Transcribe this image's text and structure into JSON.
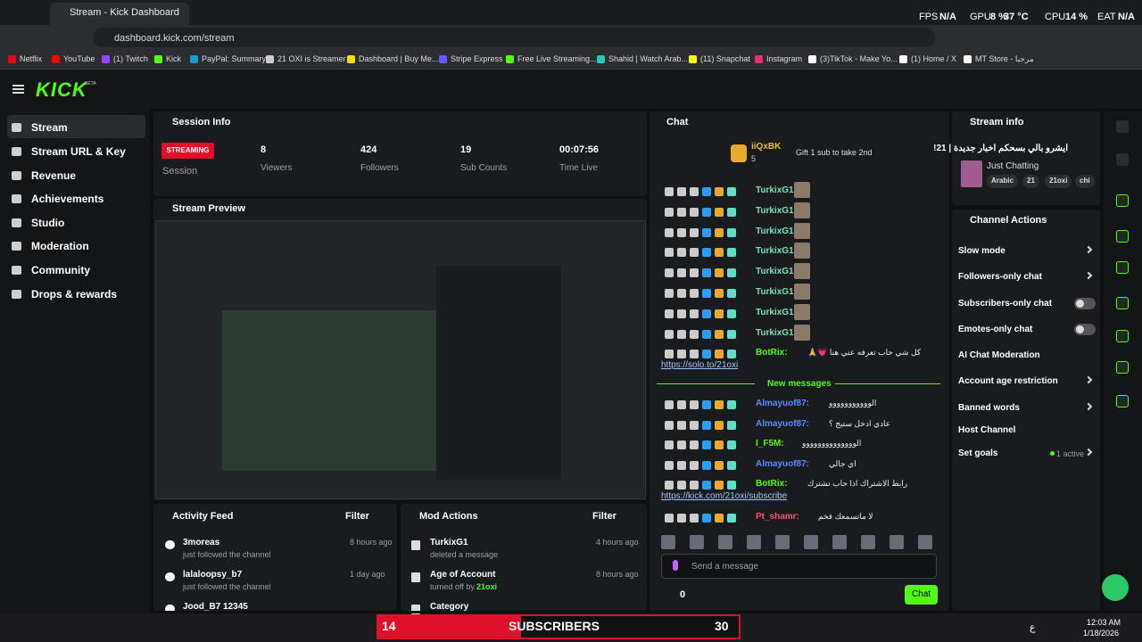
{
  "browser": {
    "tab_title": "Stream - Kick Dashboard",
    "url": "dashboard.kick.com/stream",
    "stats": [
      "FPS",
      "N/A",
      "GPU",
      "8 %",
      "37 °C",
      "CPU",
      "14 %",
      "EAT",
      "N/A"
    ],
    "bookmarks": [
      "Netflix",
      "YouTube",
      "(1) Twitch",
      "Kick",
      "PayPal: Summary",
      "21 OXI is Streamer",
      "Dashboard | Buy Me...",
      "Stripe Express",
      "Free Live Streaming...",
      "Shahid | Watch Arab...",
      "(11) Snapchat",
      "Instagram",
      "(3)TikTok - Make Yo...",
      "(1) Home / X",
      "MT Store - مرحبا"
    ]
  },
  "sidebar": {
    "logo": "KICK",
    "beta": "BETA",
    "items": [
      "Stream",
      "Stream URL & Key",
      "Revenue",
      "Achievements",
      "Studio",
      "Moderation",
      "Community",
      "Drops & rewards"
    ]
  },
  "session": {
    "title": "Session Info",
    "status": "STREAMING",
    "status_label": "Session",
    "stats": [
      {
        "value": 8,
        "label": "Viewers"
      },
      {
        "value": 424,
        "label": "Followers"
      },
      {
        "value": 19,
        "label": "Sub Counts"
      },
      {
        "value": "00:07:56",
        "label": "Time Live"
      }
    ]
  },
  "preview": {
    "title": "Stream Preview"
  },
  "activity": {
    "title": "Activity Feed",
    "filter": "Filter",
    "items": [
      {
        "name": "3moreas",
        "action": "just followed the channel",
        "time": "8 hours ago"
      },
      {
        "name": "lalaloopsy_b7",
        "action": "just followed the channel",
        "time": "1 day ago"
      },
      {
        "name": "Jood_B7 12345",
        "action": "",
        "time": ""
      }
    ]
  },
  "mod_actions": {
    "title": "Mod Actions",
    "filter": "Filter",
    "items": [
      {
        "name": "TurkixG1",
        "action": "deleted a message",
        "by": "",
        "time": "4 hours ago"
      },
      {
        "name": "Age of Account",
        "action": "turned off by",
        "by": "21oxi",
        "time": "8 hours ago"
      },
      {
        "name": "Category",
        "action": "",
        "by": "",
        "time": ""
      }
    ]
  },
  "chat": {
    "title": "Chat",
    "gifter": "iiQxBK",
    "gifter_count": 5,
    "gift_text": "Gift 1 sub to take 2nd",
    "new_messages": "New messages",
    "input": "Send a message",
    "send": "Chat",
    "points": 0,
    "messages": [
      {
        "user": "TurkixG1:",
        "color": "#7ee0b8",
        "text": "",
        "link": ""
      },
      {
        "user": "TurkixG1:",
        "color": "#7ee0b8",
        "text": "",
        "link": ""
      },
      {
        "user": "TurkixG1:",
        "color": "#7ee0b8",
        "text": "",
        "link": ""
      },
      {
        "user": "TurkixG1:",
        "color": "#7ee0b8",
        "text": "",
        "link": ""
      },
      {
        "user": "TurkixG1:",
        "color": "#7ee0b8",
        "text": "",
        "link": ""
      },
      {
        "user": "TurkixG1:",
        "color": "#7ee0b8",
        "text": "",
        "link": ""
      },
      {
        "user": "TurkixG1:",
        "color": "#7ee0b8",
        "text": "",
        "link": ""
      },
      {
        "user": "TurkixG1:",
        "color": "#7ee0b8",
        "text": "",
        "link": ""
      },
      {
        "user": "BotRix:",
        "color": "#53fc18",
        "text": "كل شي حاب تعرفه عني هنا 💗🙏",
        "link": "https://solo.to/21oxi"
      },
      {
        "user": "Almayuof87:",
        "color": "#5b8cff",
        "text": "الووووووووووو",
        "link": ""
      },
      {
        "user": "Almayuof87:",
        "color": "#5b8cff",
        "text": "عادي ادخل ستيج ؟",
        "link": ""
      },
      {
        "user": "I_F5M:",
        "color": "#53fc18",
        "text": "الوووووووووووووو",
        "link": ""
      },
      {
        "user": "Almayuof87:",
        "color": "#5b8cff",
        "text": "اي جالي",
        "link": ""
      },
      {
        "user": "BotRix:",
        "color": "#53fc18",
        "text": "رابط الاشتراك اذا حاب تشترك",
        "link": "https://kick.com/21oxi/subscribe"
      },
      {
        "user": "Pt_shamr:",
        "color": "#ff4f6d",
        "text": "لا ماتسمعك فخم",
        "link": ""
      }
    ]
  },
  "stream_info": {
    "title": "Stream info",
    "stream_title": "ايشرو بالي بسحكم اخبار جديدة | 21!",
    "category": "Just Chatting",
    "tags": [
      "Arabic",
      "21",
      "21oxi",
      "chi"
    ]
  },
  "channel_actions": {
    "title": "Channel Actions",
    "items": [
      "Slow mode",
      "Followers-only chat",
      "Subscribers-only chat",
      "Emotes-only chat",
      "AI Chat Moderation",
      "Account age restriction",
      "Banned words",
      "Host Channel",
      "Set goals"
    ],
    "set_goals_status": "1 active"
  },
  "overlay": {
    "left": 14,
    "text": "SUBSCRIBERS",
    "right": 30
  },
  "taskbar": {
    "lang": "ع",
    "time": "12:03 AM",
    "date": "1/18/2026"
  }
}
